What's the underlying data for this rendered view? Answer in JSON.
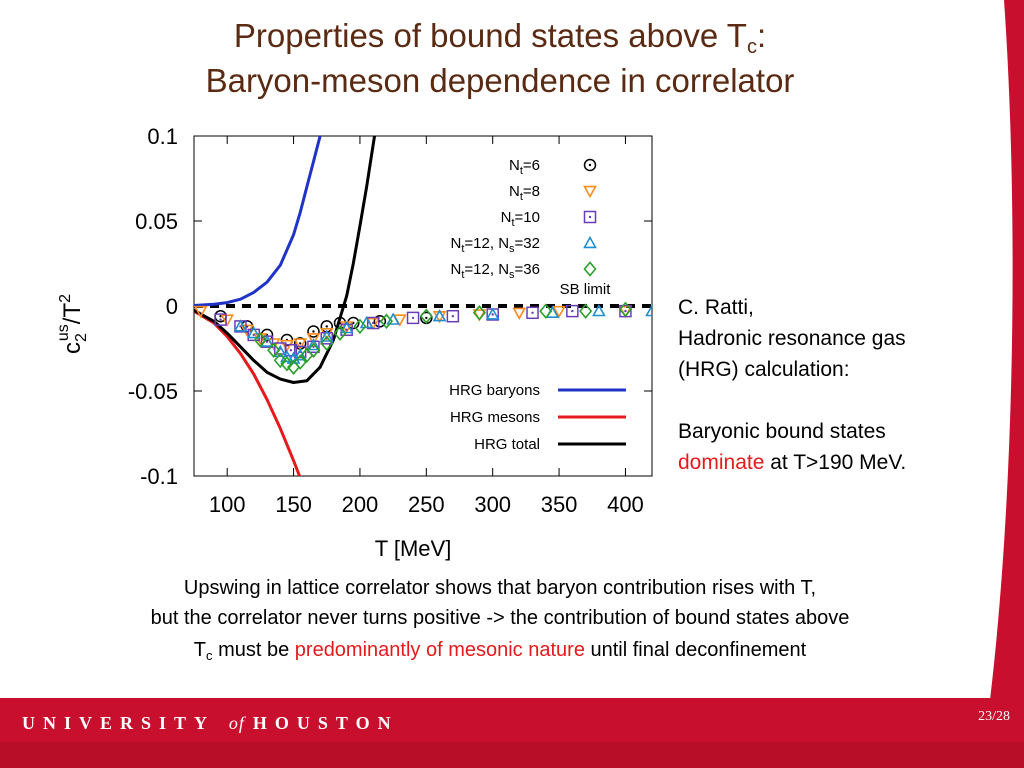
{
  "slide": {
    "title_line1_main": "Properties of bound states above T",
    "title_line1_sub": "c",
    "title_line1_end": ":",
    "title_line2": "Baryon-meson dependence in correlator",
    "side_line1": "C. Ratti,",
    "side_line2": "Hadronic resonance gas",
    "side_line3": "(HRG) calculation:",
    "side_line4": "Baryonic bound states",
    "side_line5_red": "dominate",
    "side_line5_rest": " at T>190 MeV.",
    "caption_line1": "Upswing in lattice correlator shows that baryon contribution rises with T,",
    "caption_line2": "but the correlator never turns positive -> the contribution of bound states above",
    "caption_line3_a": "T",
    "caption_line3_sub": "c",
    "caption_line3_b": " must be ",
    "caption_line3_red": "predominantly of  mesonic nature",
    "caption_line3_c": " until final deconfinement",
    "footer_brand_1": "UNIVERSITY",
    "footer_brand_of": "of",
    "footer_brand_2": "HOUSTON",
    "page_number": "23/28"
  },
  "colors": {
    "title": "#5a2a12",
    "footer": "#c8102e",
    "accent_red": "#e41a1c",
    "baryons": "#1f33c8",
    "mesons": "#e41a1c",
    "total": "#000000",
    "nt6": "#000000",
    "nt8": "#ff8c1a",
    "nt10": "#6a3db8",
    "nt12_32": "#1f8fd0",
    "nt12_36": "#2ca02c"
  },
  "chart_data": {
    "type": "scatter",
    "xlabel_main": "T [MeV]",
    "ylabel": "c2us/T2",
    "xlim": [
      75,
      420
    ],
    "ylim": [
      -0.1,
      0.1
    ],
    "xticks": [
      100,
      150,
      200,
      250,
      300,
      350,
      400
    ],
    "yticks": [
      0.1,
      0.05,
      0,
      -0.05,
      -0.1
    ],
    "ytick_labels": [
      "0.1",
      "0.05",
      "0",
      "-0.05",
      "-0.1"
    ],
    "legend_placement": "top-right",
    "series": [
      {
        "name": "Nt=6",
        "label_main": "N",
        "label_sub": "t",
        "label_rest": "=6",
        "marker": "circle-dot",
        "color": "#000000",
        "points": [
          [
            95,
            -0.006
          ],
          [
            115,
            -0.012
          ],
          [
            130,
            -0.017
          ],
          [
            145,
            -0.02
          ],
          [
            155,
            -0.022
          ],
          [
            165,
            -0.015
          ],
          [
            175,
            -0.012
          ],
          [
            185,
            -0.01
          ],
          [
            195,
            -0.01
          ],
          [
            215,
            -0.009
          ],
          [
            250,
            -0.007
          ]
        ]
      },
      {
        "name": "Nt=8",
        "label_main": "N",
        "label_sub": "t",
        "label_rest": "=8",
        "marker": "triangle-down",
        "color": "#ff8c1a",
        "points": [
          [
            80,
            -0.003
          ],
          [
            100,
            -0.008
          ],
          [
            115,
            -0.014
          ],
          [
            125,
            -0.019
          ],
          [
            135,
            -0.022
          ],
          [
            145,
            -0.023
          ],
          [
            155,
            -0.022
          ],
          [
            165,
            -0.019
          ],
          [
            175,
            -0.016
          ],
          [
            190,
            -0.012
          ],
          [
            210,
            -0.01
          ],
          [
            230,
            -0.008
          ],
          [
            260,
            -0.006
          ],
          [
            290,
            -0.005
          ],
          [
            320,
            -0.004
          ],
          [
            350,
            -0.003
          ],
          [
            400,
            -0.003
          ]
        ]
      },
      {
        "name": "Nt=10",
        "label_main": "N",
        "label_sub": "t",
        "label_rest": "=10",
        "marker": "square-dot",
        "color": "#6a3db8",
        "points": [
          [
            95,
            -0.008
          ],
          [
            110,
            -0.012
          ],
          [
            120,
            -0.017
          ],
          [
            130,
            -0.021
          ],
          [
            140,
            -0.025
          ],
          [
            148,
            -0.026
          ],
          [
            155,
            -0.027
          ],
          [
            165,
            -0.024
          ],
          [
            175,
            -0.019
          ],
          [
            190,
            -0.014
          ],
          [
            210,
            -0.01
          ],
          [
            240,
            -0.007
          ],
          [
            270,
            -0.006
          ],
          [
            300,
            -0.005
          ],
          [
            330,
            -0.004
          ],
          [
            360,
            -0.003
          ],
          [
            400,
            -0.003
          ]
        ]
      },
      {
        "name": "Nt=12, Ns=32",
        "label_main": "N",
        "label_sub": "t",
        "label_rest": "=12, N",
        "label_sub2": "s",
        "label_rest2": "=32",
        "marker": "triangle-up",
        "color": "#1f8fd0",
        "points": [
          [
            110,
            -0.012
          ],
          [
            120,
            -0.016
          ],
          [
            130,
            -0.021
          ],
          [
            140,
            -0.027
          ],
          [
            145,
            -0.03
          ],
          [
            150,
            -0.031
          ],
          [
            155,
            -0.029
          ],
          [
            165,
            -0.023
          ],
          [
            175,
            -0.018
          ],
          [
            190,
            -0.013
          ],
          [
            205,
            -0.01
          ],
          [
            225,
            -0.008
          ],
          [
            260,
            -0.006
          ],
          [
            300,
            -0.005
          ],
          [
            345,
            -0.004
          ],
          [
            380,
            -0.003
          ],
          [
            420,
            -0.003
          ]
        ]
      },
      {
        "name": "Nt=12, Ns=36",
        "label_main": "N",
        "label_sub": "t",
        "label_rest": "=12, N",
        "label_sub2": "s",
        "label_rest2": "=36",
        "marker": "diamond",
        "color": "#2ca02c",
        "points": [
          [
            125,
            -0.02
          ],
          [
            135,
            -0.026
          ],
          [
            140,
            -0.032
          ],
          [
            145,
            -0.034
          ],
          [
            150,
            -0.036
          ],
          [
            155,
            -0.033
          ],
          [
            160,
            -0.029
          ],
          [
            165,
            -0.026
          ],
          [
            175,
            -0.022
          ],
          [
            185,
            -0.016
          ],
          [
            200,
            -0.012
          ],
          [
            220,
            -0.009
          ],
          [
            250,
            -0.006
          ],
          [
            290,
            -0.004
          ],
          [
            340,
            -0.003
          ],
          [
            370,
            -0.003
          ],
          [
            400,
            -0.002
          ]
        ]
      }
    ],
    "sb_limit": {
      "name": "SB limit",
      "value": 0
    },
    "hrg_lines": [
      {
        "name": "HRG baryons",
        "color": "#1f33c8",
        "x": [
          75,
          90,
          100,
          110,
          120,
          130,
          140,
          150,
          155,
          160,
          165,
          170,
          175
        ],
        "y": [
          0.0003,
          0.001,
          0.002,
          0.004,
          0.008,
          0.014,
          0.024,
          0.042,
          0.055,
          0.07,
          0.085,
          0.1,
          0.115
        ]
      },
      {
        "name": "HRG mesons",
        "color": "#e41a1c",
        "x": [
          75,
          90,
          100,
          110,
          120,
          130,
          140,
          150,
          155,
          160,
          165
        ],
        "y": [
          -0.003,
          -0.01,
          -0.018,
          -0.028,
          -0.04,
          -0.055,
          -0.072,
          -0.091,
          -0.101,
          -0.111,
          -0.121
        ]
      },
      {
        "name": "HRG total",
        "color": "#000000",
        "x": [
          75,
          90,
          100,
          110,
          120,
          130,
          140,
          150,
          160,
          170,
          180,
          190,
          195,
          200,
          205,
          210,
          215,
          220
        ],
        "y": [
          -0.0025,
          -0.009,
          -0.016,
          -0.024,
          -0.032,
          -0.039,
          -0.043,
          -0.045,
          -0.044,
          -0.036,
          -0.02,
          0.006,
          0.025,
          0.047,
          0.07,
          0.095,
          0.12,
          0.145
        ]
      }
    ]
  }
}
